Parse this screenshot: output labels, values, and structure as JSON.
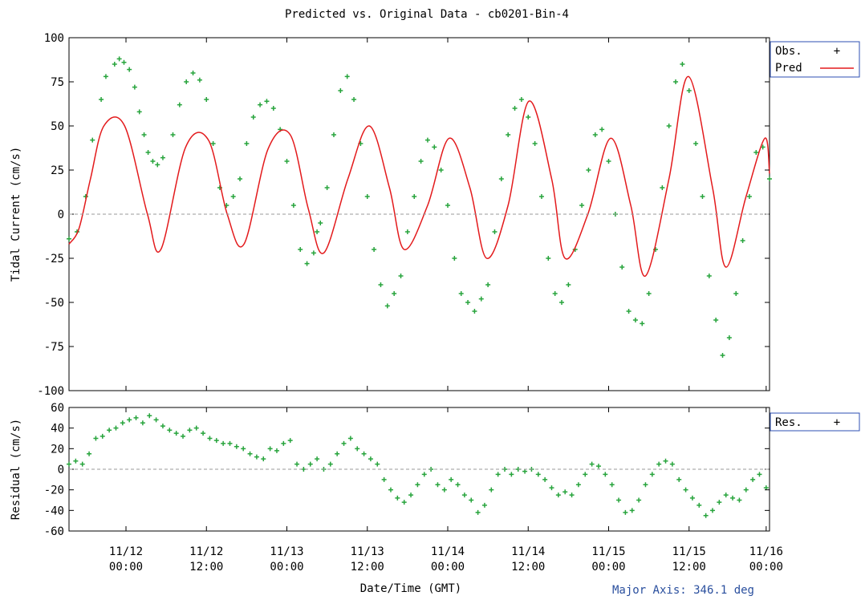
{
  "title": "Predicted vs. Original Data - cb0201-Bin-4",
  "footer_note": "Major Axis: 346.1 deg",
  "colors": {
    "obs": "#27a43c",
    "pred": "#e31a1c",
    "res": "#27a43c",
    "zero_line": "#9a9a9a",
    "legend_border": "#2c4fb3",
    "footer": "#2a4f9e"
  },
  "chart_data": [
    {
      "type": "line",
      "name": "main",
      "ylabel": "Tidal Current (cm/s)",
      "ylim": [
        -100,
        100
      ],
      "yticks": [
        -100,
        -75,
        -50,
        -25,
        0,
        25,
        50,
        75,
        100
      ],
      "xlim_hours": [
        0,
        104.5
      ],
      "legend": [
        "Obs.",
        "Pred"
      ],
      "legend_placement": "outside-right-top",
      "zero_line": true,
      "series": [
        {
          "name": "Pred",
          "style": "line",
          "x_hours": [
            0.0,
            1.5,
            3.2,
            5.2,
            8.3,
            11.7,
            13.7,
            17.4,
            20.8,
            23.6,
            26.1,
            29.7,
            33.0,
            35.7,
            38.0,
            41.6,
            44.8,
            47.8,
            50.0,
            53.5,
            56.7,
            59.8,
            62.3,
            65.5,
            68.6,
            72.0,
            74.0,
            77.4,
            80.8,
            83.8,
            86.0,
            89.5,
            92.4,
            96.0,
            98.0,
            101.0,
            103.8,
            104.5
          ],
          "values": [
            -17,
            -8,
            20,
            50,
            50,
            0,
            -20,
            38,
            42,
            0,
            -17,
            37,
            45,
            3,
            -22,
            20,
            50,
            15,
            -20,
            5,
            43,
            15,
            -25,
            5,
            64,
            20,
            -25,
            0,
            43,
            5,
            -35,
            20,
            78,
            15,
            -30,
            10,
            43,
            23
          ]
        },
        {
          "name": "Obs.",
          "style": "points",
          "x_hours": [
            0.0,
            1.2,
            2.5,
            3.5,
            4.8,
            5.5,
            6.8,
            7.5,
            8.2,
            9.0,
            9.8,
            10.5,
            11.2,
            11.8,
            12.5,
            13.2,
            14.0,
            15.5,
            16.5,
            17.5,
            18.5,
            19.5,
            20.5,
            21.5,
            22.5,
            23.5,
            24.5,
            25.5,
            26.5,
            27.5,
            28.5,
            29.5,
            30.5,
            31.5,
            32.5,
            33.5,
            34.5,
            35.5,
            36.5,
            37.0,
            37.5,
            38.5,
            39.5,
            40.5,
            41.5,
            42.5,
            43.5,
            44.5,
            45.5,
            46.5,
            47.5,
            48.5,
            49.5,
            50.5,
            51.5,
            52.5,
            53.5,
            54.5,
            55.5,
            56.5,
            57.5,
            58.5,
            59.5,
            60.5,
            61.5,
            62.5,
            63.5,
            64.5,
            65.5,
            66.5,
            67.5,
            68.5,
            69.5,
            70.5,
            71.5,
            72.5,
            73.5,
            74.5,
            75.5,
            76.5,
            77.5,
            78.5,
            79.5,
            80.5,
            81.5,
            82.5,
            83.5,
            84.5,
            85.5,
            86.5,
            87.5,
            88.5,
            89.5,
            90.5,
            91.5,
            92.5,
            93.5,
            94.5,
            95.5,
            96.5,
            97.5,
            98.5,
            99.5,
            100.5,
            101.5,
            102.5,
            103.5,
            104.5
          ],
          "values": [
            -14,
            -10,
            10,
            42,
            65,
            78,
            85,
            88,
            86,
            82,
            72,
            58,
            45,
            35,
            30,
            28,
            32,
            45,
            62,
            75,
            80,
            76,
            65,
            40,
            15,
            5,
            10,
            20,
            40,
            55,
            62,
            64,
            60,
            48,
            30,
            5,
            -20,
            -28,
            -22,
            -10,
            -5,
            15,
            45,
            70,
            78,
            65,
            40,
            10,
            -20,
            -40,
            -52,
            -45,
            -35,
            -10,
            10,
            30,
            42,
            38,
            25,
            5,
            -25,
            -45,
            -50,
            -55,
            -48,
            -40,
            -10,
            20,
            45,
            60,
            65,
            55,
            40,
            10,
            -25,
            -45,
            -50,
            -40,
            -20,
            5,
            25,
            45,
            48,
            30,
            0,
            -30,
            -55,
            -60,
            -62,
            -45,
            -20,
            15,
            50,
            75,
            85,
            70,
            40,
            10,
            -35,
            -60,
            -80,
            -70,
            -45,
            -15,
            10,
            35,
            38,
            20
          ]
        }
      ]
    },
    {
      "type": "scatter",
      "name": "residual",
      "ylabel": "Residual (cm/s)",
      "xlabel": "Date/Time (GMT)",
      "ylim": [
        -60,
        60
      ],
      "yticks": [
        -60,
        -40,
        -20,
        0,
        20,
        40,
        60
      ],
      "xlim_hours": [
        0,
        104.5
      ],
      "legend": [
        "Res."
      ],
      "legend_placement": "outside-right-top",
      "zero_line": true,
      "x_ticks": [
        {
          "hour": 8.5,
          "label1": "11/12",
          "label2": "00:00"
        },
        {
          "hour": 20.5,
          "label1": "11/12",
          "label2": "12:00"
        },
        {
          "hour": 32.5,
          "label1": "11/13",
          "label2": "00:00"
        },
        {
          "hour": 44.5,
          "label1": "11/13",
          "label2": "12:00"
        },
        {
          "hour": 56.5,
          "label1": "11/14",
          "label2": "00:00"
        },
        {
          "hour": 68.5,
          "label1": "11/14",
          "label2": "12:00"
        },
        {
          "hour": 80.5,
          "label1": "11/15",
          "label2": "00:00"
        },
        {
          "hour": 92.5,
          "label1": "11/15",
          "label2": "12:00"
        },
        {
          "hour": 104.0,
          "label1": "11/16",
          "label2": "00:00"
        }
      ],
      "series": [
        {
          "name": "Res.",
          "x_hours": [
            0.0,
            1.0,
            2.0,
            3.0,
            4.0,
            5.0,
            6.0,
            7.0,
            8.0,
            9.0,
            10.0,
            11.0,
            12.0,
            13.0,
            14.0,
            15.0,
            16.0,
            17.0,
            18.0,
            19.0,
            20.0,
            21.0,
            22.0,
            23.0,
            24.0,
            25.0,
            26.0,
            27.0,
            28.0,
            29.0,
            30.0,
            31.0,
            32.0,
            33.0,
            34.0,
            35.0,
            36.0,
            37.0,
            38.0,
            39.0,
            40.0,
            41.0,
            42.0,
            43.0,
            44.0,
            45.0,
            46.0,
            47.0,
            48.0,
            49.0,
            50.0,
            51.0,
            52.0,
            53.0,
            54.0,
            55.0,
            56.0,
            57.0,
            58.0,
            59.0,
            60.0,
            61.0,
            62.0,
            63.0,
            64.0,
            65.0,
            66.0,
            67.0,
            68.0,
            69.0,
            70.0,
            71.0,
            72.0,
            73.0,
            74.0,
            75.0,
            76.0,
            77.0,
            78.0,
            79.0,
            80.0,
            81.0,
            82.0,
            83.0,
            84.0,
            85.0,
            86.0,
            87.0,
            88.0,
            89.0,
            90.0,
            91.0,
            92.0,
            93.0,
            94.0,
            95.0,
            96.0,
            97.0,
            98.0,
            99.0,
            100.0,
            101.0,
            102.0,
            103.0,
            104.0
          ],
          "values": [
            5,
            8,
            5,
            15,
            30,
            32,
            38,
            40,
            45,
            48,
            50,
            45,
            52,
            48,
            42,
            38,
            35,
            32,
            38,
            40,
            35,
            30,
            28,
            25,
            25,
            22,
            20,
            15,
            12,
            10,
            20,
            18,
            25,
            28,
            5,
            0,
            5,
            10,
            0,
            5,
            15,
            25,
            30,
            20,
            15,
            10,
            5,
            -10,
            -20,
            -28,
            -32,
            -25,
            -15,
            -5,
            0,
            -15,
            -20,
            -10,
            -15,
            -25,
            -30,
            -42,
            -35,
            -20,
            -5,
            0,
            -5,
            0,
            -2,
            0,
            -5,
            -10,
            -18,
            -25,
            -22,
            -25,
            -15,
            -5,
            5,
            3,
            -5,
            -15,
            -30,
            -42,
            -40,
            -30,
            -15,
            -5,
            5,
            8,
            5,
            -10,
            -20,
            -28,
            -35,
            -45,
            -40,
            -32,
            -25,
            -28,
            -30,
            -20,
            -10,
            -5,
            -18
          ]
        }
      ]
    }
  ]
}
